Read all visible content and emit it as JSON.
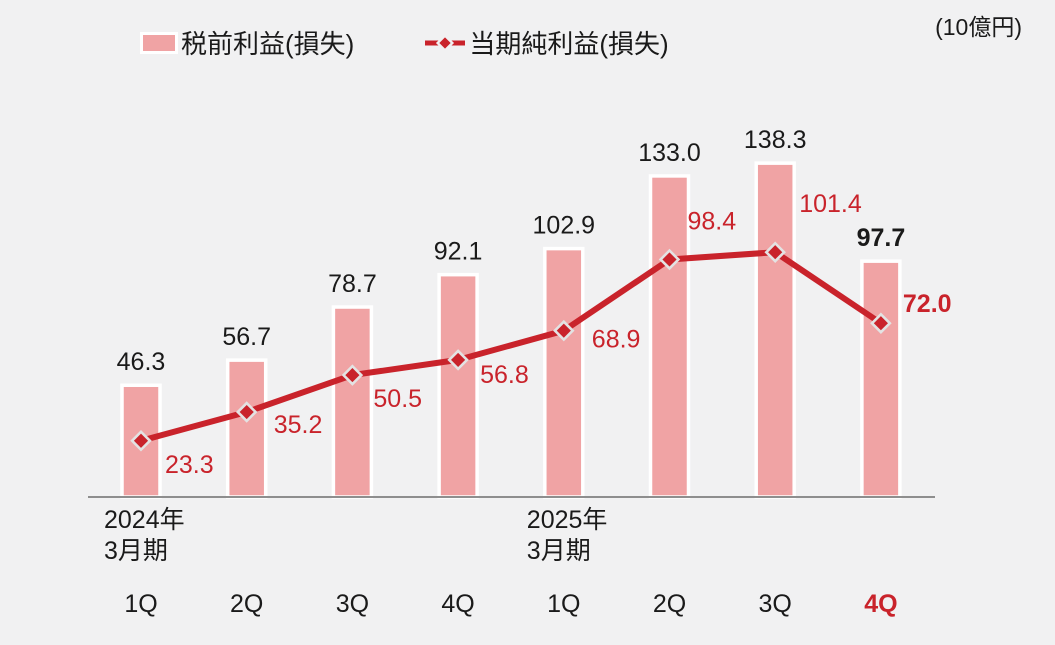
{
  "chart_data": {
    "type": "bar",
    "combo": "bar+line",
    "unit": "(10億円)",
    "categories": [
      "1Q",
      "2Q",
      "3Q",
      "4Q",
      "1Q",
      "2Q",
      "3Q",
      "4Q"
    ],
    "period_labels": [
      {
        "line1": "2024年",
        "line2": "3月期",
        "start_index": 0
      },
      {
        "line1": "2025年",
        "line2": "3月期",
        "start_index": 4
      }
    ],
    "series": [
      {
        "name": "税前利益(損失)",
        "type": "bar",
        "values": [
          46.3,
          56.7,
          78.7,
          92.1,
          102.9,
          133.0,
          138.3,
          97.7
        ]
      },
      {
        "name": "当期純利益(損失)",
        "type": "line",
        "values": [
          23.3,
          35.2,
          50.5,
          56.8,
          68.9,
          98.4,
          101.4,
          72.0
        ]
      }
    ],
    "highlight_index": 7,
    "ylim": [
      0,
      150
    ],
    "grid": false,
    "legend_position": "top",
    "colors": {
      "bar_fill": "#F0A3A4",
      "bar_stroke": "#FFFFFF",
      "line": "#C9232B",
      "marker_fill": "#C9232B",
      "marker_stroke": "#E3E3E3",
      "text": "#1A1A1A",
      "axis": "#8E8E8E",
      "highlight": "#C9232B",
      "background": "#F1F1F2"
    }
  }
}
